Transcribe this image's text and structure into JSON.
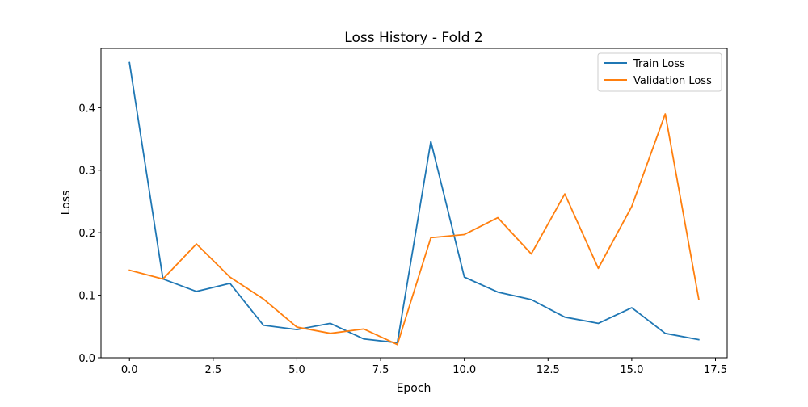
{
  "chart_data": {
    "type": "line",
    "title": "Loss History - Fold 2",
    "xlabel": "Epoch",
    "ylabel": "Loss",
    "xlim": [
      -0.85,
      17.85
    ],
    "ylim": [
      0,
      0.4947
    ],
    "xticks": [
      0,
      2.5,
      5,
      7.5,
      10,
      12.5,
      15,
      17.5
    ],
    "xtick_labels": [
      "0.0",
      "2.5",
      "5.0",
      "7.5",
      "10.0",
      "12.5",
      "15.0",
      "17.5"
    ],
    "yticks": [
      0,
      0.1,
      0.2,
      0.3,
      0.4
    ],
    "ytick_labels": [
      "0.0",
      "0.1",
      "0.2",
      "0.3",
      "0.4"
    ],
    "grid": false,
    "legend_position": "top-right",
    "x": [
      0,
      1,
      2,
      3,
      4,
      5,
      6,
      7,
      8,
      9,
      10,
      11,
      12,
      13,
      14,
      15,
      16,
      17
    ],
    "series": [
      {
        "name": "Train Loss",
        "color": "#1f77b4",
        "values": [
          0.472,
          0.126,
          0.106,
          0.119,
          0.052,
          0.045,
          0.055,
          0.03,
          0.024,
          0.346,
          0.129,
          0.105,
          0.093,
          0.065,
          0.055,
          0.08,
          0.039,
          0.029
        ]
      },
      {
        "name": "Validation Loss",
        "color": "#ff7f0e",
        "values": [
          0.14,
          0.126,
          0.182,
          0.129,
          0.094,
          0.049,
          0.039,
          0.046,
          0.021,
          0.192,
          0.197,
          0.224,
          0.166,
          0.262,
          0.143,
          0.242,
          0.39,
          0.094
        ]
      }
    ]
  }
}
